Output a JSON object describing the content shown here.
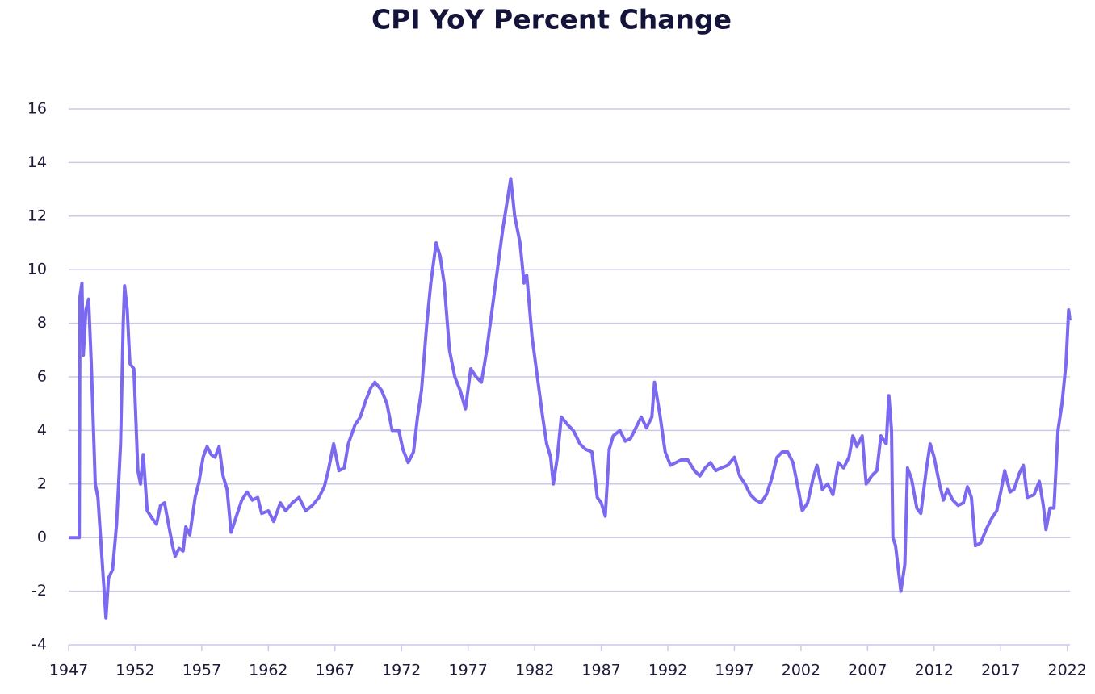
{
  "chart_data": {
    "type": "line",
    "title": "CPI YoY Percent Change",
    "x": [
      1947.0,
      1947.8,
      1947.85,
      1948.0,
      1948.1,
      1948.3,
      1948.5,
      1948.7,
      1949.0,
      1949.2,
      1949.6,
      1949.8,
      1950.0,
      1950.3,
      1950.6,
      1950.9,
      1951.1,
      1951.2,
      1951.4,
      1951.6,
      1951.9,
      1952.2,
      1952.4,
      1952.6,
      1952.9,
      1953.3,
      1953.6,
      1953.9,
      1954.2,
      1954.5,
      1954.8,
      1955.0,
      1955.3,
      1955.6,
      1955.8,
      1956.1,
      1956.5,
      1956.8,
      1957.1,
      1957.4,
      1957.7,
      1958.0,
      1958.3,
      1958.6,
      1958.9,
      1959.2,
      1959.6,
      1960.0,
      1960.4,
      1960.8,
      1961.2,
      1961.5,
      1962.0,
      1962.4,
      1962.9,
      1963.3,
      1963.8,
      1964.3,
      1964.8,
      1965.3,
      1965.8,
      1966.2,
      1966.5,
      1966.9,
      1967.3,
      1967.7,
      1968.0,
      1968.5,
      1968.9,
      1969.3,
      1969.7,
      1970.0,
      1970.5,
      1970.9,
      1971.3,
      1971.8,
      1972.1,
      1972.5,
      1972.9,
      1973.2,
      1973.5,
      1973.9,
      1974.2,
      1974.6,
      1974.9,
      1975.2,
      1975.6,
      1976.0,
      1976.4,
      1976.8,
      1977.2,
      1977.6,
      1978.0,
      1978.4,
      1978.8,
      1979.2,
      1979.6,
      1980.2,
      1980.5,
      1980.9,
      1981.2,
      1981.4,
      1981.8,
      1982.2,
      1982.6,
      1982.9,
      1983.2,
      1983.4,
      1983.7,
      1984.0,
      1984.5,
      1984.9,
      1985.4,
      1985.8,
      1986.3,
      1986.7,
      1987.0,
      1987.3,
      1987.6,
      1987.9,
      1988.4,
      1988.8,
      1989.2,
      1989.7,
      1990.0,
      1990.4,
      1990.8,
      1991.0,
      1991.4,
      1991.8,
      1992.2,
      1992.6,
      1993.0,
      1993.5,
      1994.0,
      1994.4,
      1994.8,
      1995.2,
      1995.6,
      1996.0,
      1996.5,
      1997.0,
      1997.4,
      1997.8,
      1998.2,
      1998.6,
      1999.0,
      1999.4,
      1999.8,
      2000.2,
      2000.6,
      2001.0,
      2001.4,
      2001.8,
      2002.1,
      2002.5,
      2002.9,
      2003.2,
      2003.6,
      2004.0,
      2004.4,
      2004.8,
      2005.2,
      2005.6,
      2005.9,
      2006.2,
      2006.6,
      2006.9,
      2007.3,
      2007.7,
      2008.0,
      2008.4,
      2008.6,
      2008.8,
      2008.9,
      2009.1,
      2009.5,
      2009.8,
      2010.0,
      2010.3,
      2010.7,
      2011.0,
      2011.4,
      2011.7,
      2012.0,
      2012.4,
      2012.7,
      2013.0,
      2013.4,
      2013.8,
      2014.2,
      2014.5,
      2014.8,
      2015.1,
      2015.5,
      2015.9,
      2016.3,
      2016.7,
      2017.0,
      2017.3,
      2017.7,
      2018.0,
      2018.4,
      2018.7,
      2019.0,
      2019.5,
      2019.9,
      2020.2,
      2020.4,
      2020.7,
      2021.0,
      2021.3,
      2021.6,
      2021.9,
      2022.0,
      2022.1,
      2022.2
    ],
    "series": [
      {
        "color": "#7b6af0",
        "values": [
          0,
          0,
          9,
          9.5,
          6.8,
          8.5,
          8.9,
          6.5,
          2,
          1.5,
          -1.5,
          -3,
          -1.5,
          -1.2,
          0.5,
          3.5,
          8,
          9.4,
          8.5,
          6.5,
          6.3,
          2.5,
          2.0,
          3.1,
          1.0,
          0.7,
          0.5,
          1.2,
          1.3,
          0.5,
          -0.3,
          -0.7,
          -0.4,
          -0.5,
          0.4,
          0.1,
          1.5,
          2.1,
          3.0,
          3.4,
          3.1,
          3.0,
          3.4,
          2.3,
          1.8,
          0.2,
          0.8,
          1.4,
          1.7,
          1.4,
          1.5,
          0.9,
          1.0,
          0.6,
          1.3,
          1.0,
          1.3,
          1.5,
          1.0,
          1.2,
          1.5,
          1.9,
          2.5,
          3.5,
          2.5,
          2.6,
          3.5,
          4.2,
          4.5,
          5.1,
          5.6,
          5.8,
          5.5,
          5.0,
          4.0,
          4.0,
          3.3,
          2.8,
          3.2,
          4.5,
          5.5,
          8.0,
          9.5,
          11.0,
          10.5,
          9.5,
          7.0,
          6.0,
          5.5,
          4.8,
          6.3,
          6.0,
          5.8,
          7.0,
          8.5,
          10.0,
          11.5,
          13.4,
          12.0,
          11.0,
          9.5,
          9.8,
          7.5,
          6.0,
          4.5,
          3.5,
          3.0,
          2.0,
          3.0,
          4.5,
          4.2,
          4.0,
          3.5,
          3.3,
          3.2,
          1.5,
          1.3,
          0.8,
          3.3,
          3.8,
          4.0,
          3.6,
          3.7,
          4.2,
          4.5,
          4.1,
          4.5,
          5.8,
          4.6,
          3.2,
          2.7,
          2.8,
          2.9,
          2.9,
          2.5,
          2.3,
          2.6,
          2.8,
          2.5,
          2.6,
          2.7,
          3.0,
          2.3,
          2.0,
          1.6,
          1.4,
          1.3,
          1.6,
          2.2,
          3.0,
          3.2,
          3.2,
          2.8,
          1.8,
          1.0,
          1.3,
          2.2,
          2.7,
          1.8,
          2.0,
          1.6,
          2.8,
          2.6,
          3.0,
          3.8,
          3.4,
          3.8,
          2.0,
          2.3,
          2.5,
          3.8,
          3.5,
          5.3,
          4.0,
          0.0,
          -0.3,
          -2.0,
          -1.0,
          2.6,
          2.2,
          1.1,
          0.9,
          2.5,
          3.5,
          3.0,
          2.0,
          1.4,
          1.8,
          1.4,
          1.2,
          1.3,
          1.9,
          1.5,
          -0.3,
          -0.2,
          0.3,
          0.7,
          1.0,
          1.7,
          2.5,
          1.7,
          1.8,
          2.4,
          2.7,
          1.5,
          1.6,
          2.1,
          1.2,
          0.3,
          1.1,
          1.1,
          4.0,
          5.0,
          6.5,
          7.5,
          8.5,
          8.1
        ]
      }
    ],
    "xlim": [
      1947,
      2022.2
    ],
    "xticks": [
      1947,
      1952,
      1957,
      1962,
      1967,
      1972,
      1977,
      1982,
      1987,
      1992,
      1997,
      2002,
      2007,
      2012,
      2017,
      2022
    ],
    "ylim": [
      -4,
      16
    ],
    "yticks": [
      -4,
      -2,
      0,
      2,
      4,
      6,
      8,
      10,
      12,
      14,
      16
    ],
    "grid": true
  }
}
